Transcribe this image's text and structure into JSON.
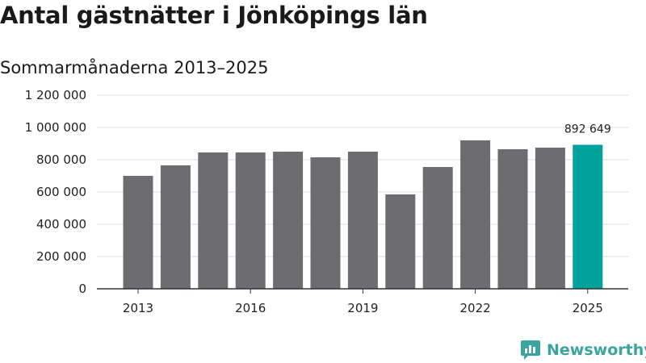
{
  "chart_data": {
    "type": "bar",
    "title": "Antal gästnätter i Jönköpings län",
    "subtitle": "Sommarmånaderna 2013–2025",
    "categories": [
      "2013",
      "2014",
      "2015",
      "2016",
      "2017",
      "2018",
      "2019",
      "2020",
      "2021",
      "2022",
      "2023",
      "2024",
      "2025"
    ],
    "values": [
      700000,
      765000,
      845000,
      845000,
      850000,
      815000,
      850000,
      585000,
      755000,
      920000,
      865000,
      875000,
      892649
    ],
    "x_tick_labels": [
      "2013",
      "2016",
      "2019",
      "2022",
      "2025"
    ],
    "y_ticks": [
      0,
      200000,
      400000,
      600000,
      800000,
      1000000,
      1200000
    ],
    "y_tick_labels": [
      "0",
      "200 000",
      "400 000",
      "600 000",
      "800 000",
      "1 000 000",
      "1 200 000"
    ],
    "ylim": [
      0,
      1200000
    ],
    "highlight_index": 12,
    "highlight_label": "892 649",
    "grid": "horizontal",
    "colors": {
      "bar": "#6d6c71",
      "highlight": "#00a39b",
      "grid": "#dddddd",
      "axis": "#333333"
    }
  },
  "branding": {
    "name": "Newsworthy",
    "color": "#3aa59e",
    "icon": "newsworthy-chart-icon"
  }
}
